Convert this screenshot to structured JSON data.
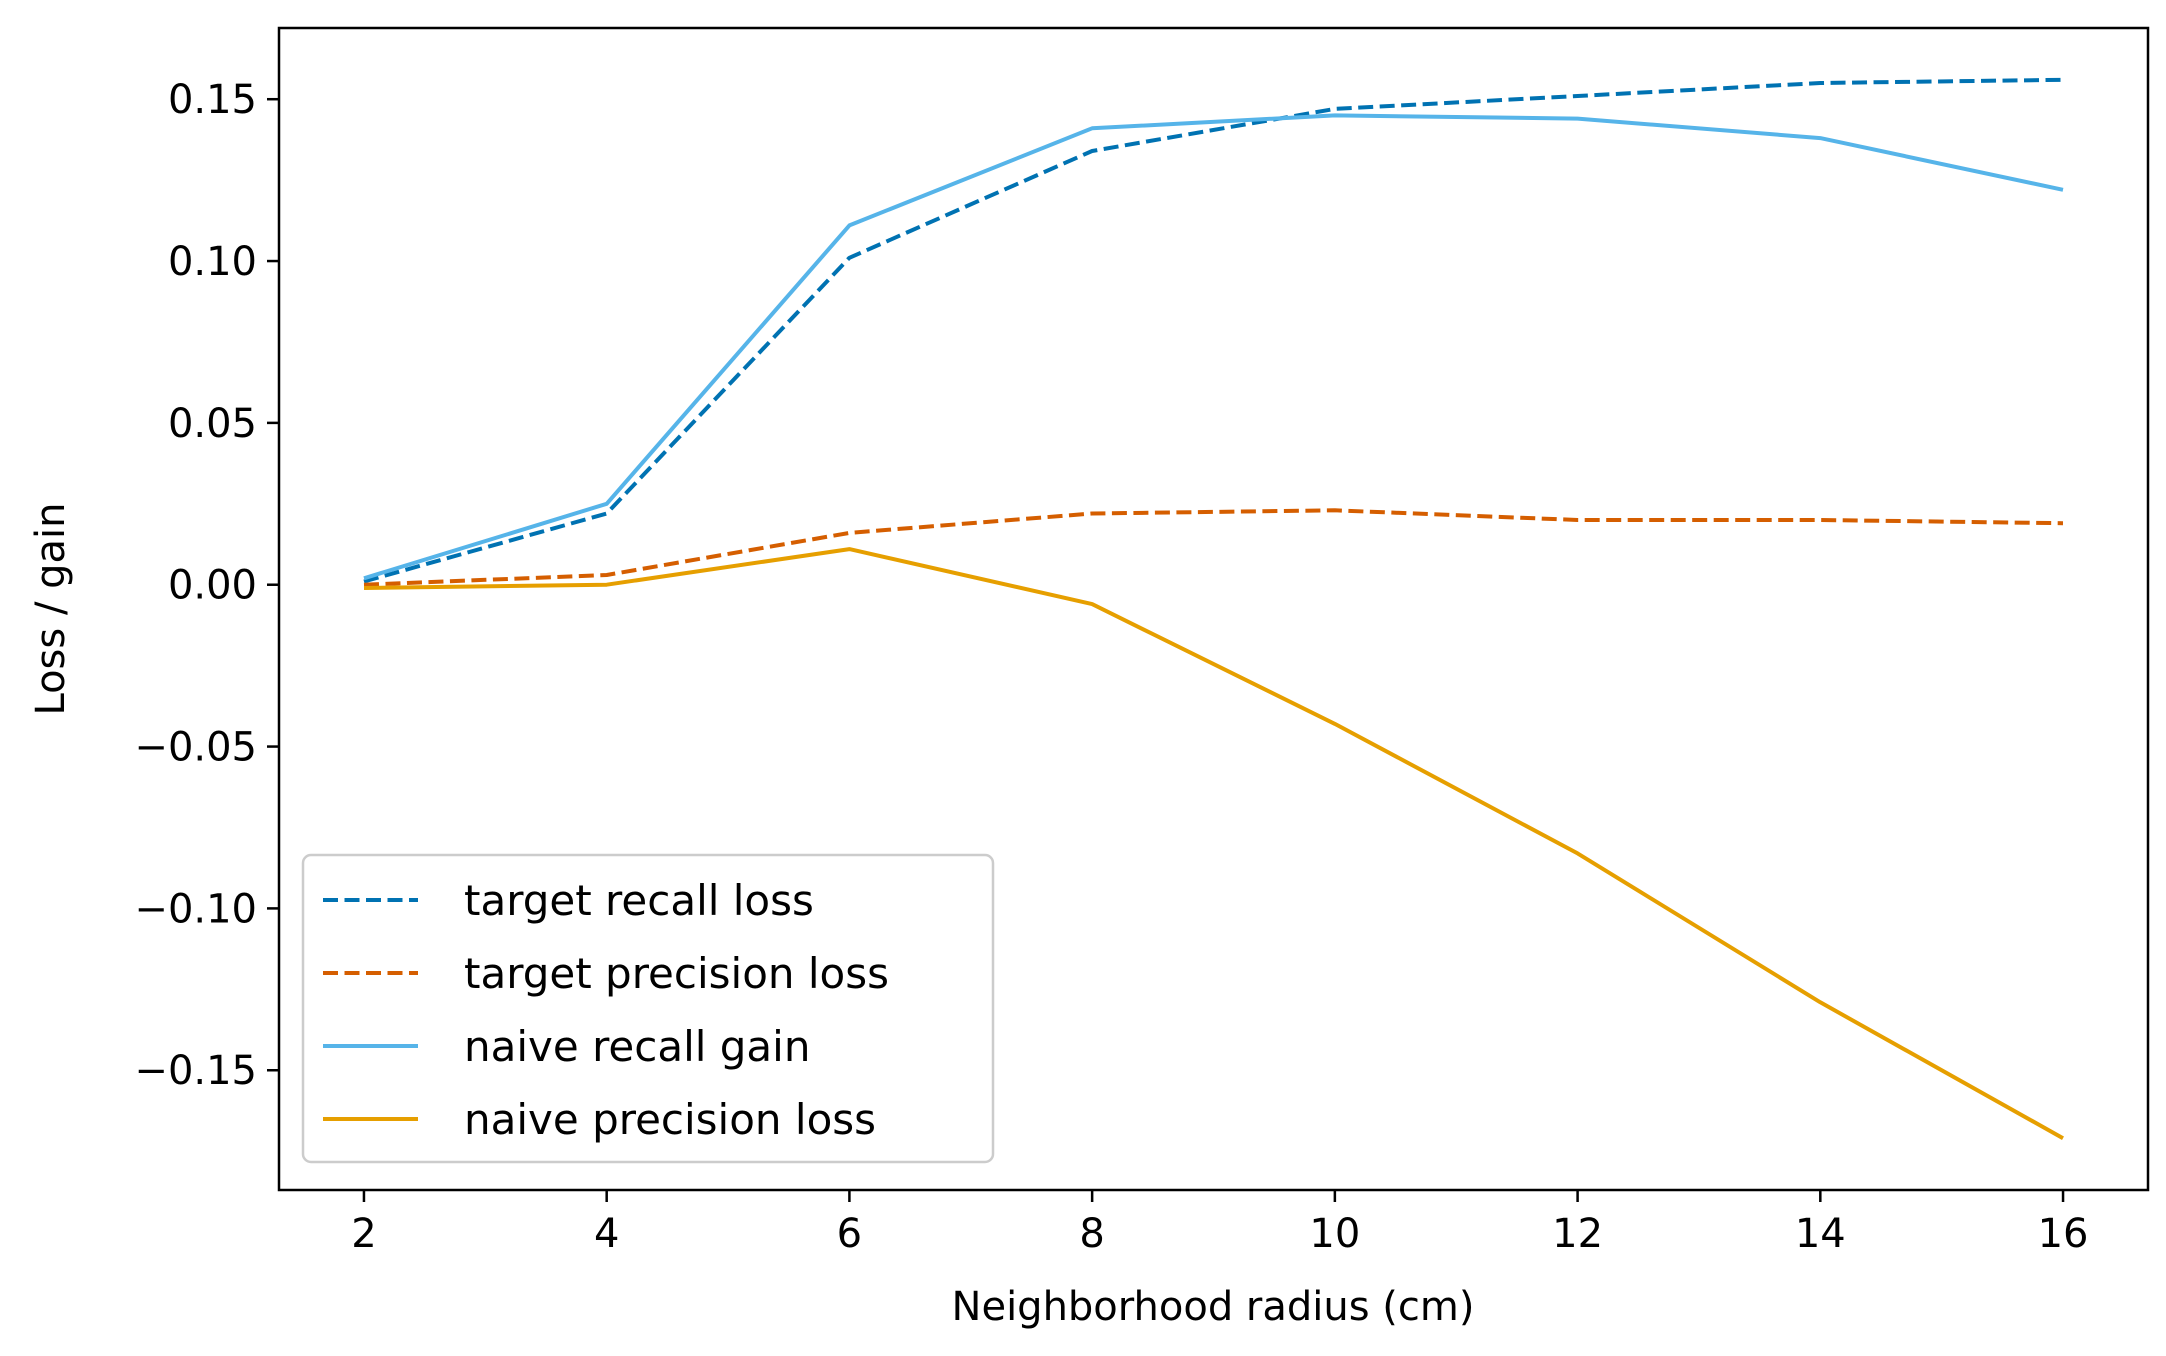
{
  "chart_data": {
    "type": "line",
    "title": "",
    "xlabel": "Neighborhood radius (cm)",
    "ylabel": "Loss / gain",
    "x": [
      2,
      4,
      6,
      8,
      10,
      12,
      14,
      16
    ],
    "xlim": [
      1.3,
      16.7
    ],
    "ylim": [
      -0.187,
      0.172
    ],
    "xticks": [
      2,
      4,
      6,
      8,
      10,
      12,
      14,
      16
    ],
    "xtick_labels": [
      "2",
      "4",
      "6",
      "8",
      "10",
      "12",
      "14",
      "16"
    ],
    "yticks": [
      0.15,
      0.1,
      0.05,
      0.0,
      -0.05,
      -0.1,
      -0.15
    ],
    "ytick_labels": [
      "0.15",
      "0.10",
      "0.05",
      "0.00",
      "−0.05",
      "−0.10",
      "−0.15"
    ],
    "grid": false,
    "legend_position": "lower-left",
    "series": [
      {
        "name": "target recall loss",
        "color": "#0072B2",
        "style": "dashed",
        "values": [
          0.001,
          0.022,
          0.101,
          0.134,
          0.147,
          0.151,
          0.155,
          0.156
        ]
      },
      {
        "name": "target precision loss",
        "color": "#D55E00",
        "style": "dashed",
        "values": [
          0.0,
          0.003,
          0.016,
          0.022,
          0.023,
          0.02,
          0.02,
          0.019
        ]
      },
      {
        "name": "naive recall gain",
        "color": "#56B4E9",
        "style": "solid",
        "values": [
          0.002,
          0.025,
          0.111,
          0.141,
          0.145,
          0.144,
          0.138,
          0.122
        ]
      },
      {
        "name": "naive precision loss",
        "color": "#E69F00",
        "style": "solid",
        "values": [
          -0.001,
          0.0,
          0.011,
          -0.006,
          -0.043,
          -0.083,
          -0.129,
          -0.171
        ]
      }
    ]
  }
}
